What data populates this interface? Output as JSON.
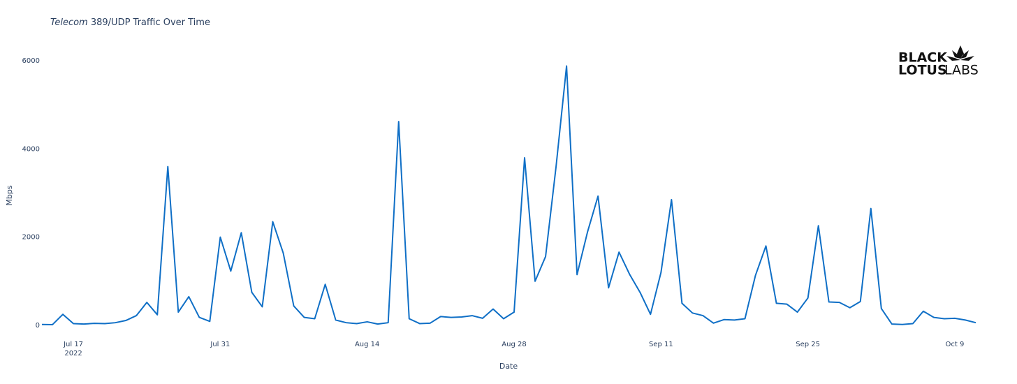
{
  "chart_data": {
    "type": "line",
    "title_italic": "Telecom",
    "title": "389/UDP Traffic Over Time",
    "logo": {
      "line1": "BLACK",
      "line2a": "LOTUS",
      "line2b": "LABS"
    },
    "xlabel": "Date",
    "ylabel": "Mbps",
    "x": [
      "2022-07-14",
      "2022-07-15",
      "2022-07-16",
      "2022-07-17",
      "2022-07-18",
      "2022-07-19",
      "2022-07-20",
      "2022-07-21",
      "2022-07-22",
      "2022-07-23",
      "2022-07-24",
      "2022-07-25",
      "2022-07-26",
      "2022-07-27",
      "2022-07-28",
      "2022-07-29",
      "2022-07-30",
      "2022-07-31",
      "2022-08-01",
      "2022-08-02",
      "2022-08-03",
      "2022-08-04",
      "2022-08-05",
      "2022-08-06",
      "2022-08-07",
      "2022-08-08",
      "2022-08-09",
      "2022-08-10",
      "2022-08-11",
      "2022-08-12",
      "2022-08-13",
      "2022-08-14",
      "2022-08-15",
      "2022-08-16",
      "2022-08-17",
      "2022-08-18",
      "2022-08-19",
      "2022-08-20",
      "2022-08-21",
      "2022-08-22",
      "2022-08-23",
      "2022-08-24",
      "2022-08-25",
      "2022-08-26",
      "2022-08-27",
      "2022-08-28",
      "2022-08-29",
      "2022-08-30",
      "2022-08-31",
      "2022-09-01",
      "2022-09-02",
      "2022-09-03",
      "2022-09-04",
      "2022-09-05",
      "2022-09-06",
      "2022-09-07",
      "2022-09-08",
      "2022-09-09",
      "2022-09-10",
      "2022-09-11",
      "2022-09-12",
      "2022-09-13",
      "2022-09-14",
      "2022-09-15",
      "2022-09-16",
      "2022-09-17",
      "2022-09-18",
      "2022-09-19",
      "2022-09-20",
      "2022-09-21",
      "2022-09-22",
      "2022-09-23",
      "2022-09-24",
      "2022-09-25",
      "2022-09-26",
      "2022-09-27",
      "2022-09-28",
      "2022-09-29",
      "2022-09-30",
      "2022-10-01",
      "2022-10-02",
      "2022-10-03",
      "2022-10-04",
      "2022-10-05",
      "2022-10-06",
      "2022-10-07",
      "2022-10-08",
      "2022-10-09",
      "2022-10-10",
      "2022-10-11"
    ],
    "series": [
      {
        "name": "Mbps",
        "color": "#0f6fc6",
        "values": [
          20,
          15,
          250,
          40,
          30,
          45,
          40,
          60,
          110,
          220,
          520,
          240,
          3600,
          300,
          650,
          180,
          90,
          2000,
          1230,
          2100,
          750,
          420,
          2350,
          1640,
          440,
          180,
          150,
          930,
          120,
          60,
          40,
          80,
          30,
          60,
          4620,
          150,
          40,
          50,
          200,
          180,
          190,
          220,
          160,
          370,
          150,
          300,
          3800,
          1000,
          1560,
          3600,
          5880,
          1150,
          2120,
          2930,
          850,
          1660,
          1160,
          750,
          250,
          1200,
          2850,
          500,
          280,
          220,
          50,
          130,
          120,
          150,
          1130,
          1800,
          500,
          480,
          300,
          620,
          2260,
          530,
          520,
          400,
          540,
          2650,
          380,
          30,
          20,
          40,
          320,
          180,
          150,
          160,
          120,
          60
        ]
      }
    ],
    "xlim": [
      "2022-07-14",
      "2022-10-11"
    ],
    "xticks": [
      {
        "value": "2022-07-17",
        "label": "Jul 17\n2022"
      },
      {
        "value": "2022-07-31",
        "label": "Jul 31"
      },
      {
        "value": "2022-08-14",
        "label": "Aug 14"
      },
      {
        "value": "2022-08-28",
        "label": "Aug 28"
      },
      {
        "value": "2022-09-11",
        "label": "Sep 11"
      },
      {
        "value": "2022-09-25",
        "label": "Sep 25"
      },
      {
        "value": "2022-10-09",
        "label": "Oct 9"
      }
    ],
    "ylim": [
      -100,
      6400
    ],
    "yticks": [
      0,
      2000,
      4000,
      6000
    ],
    "grid": false
  }
}
